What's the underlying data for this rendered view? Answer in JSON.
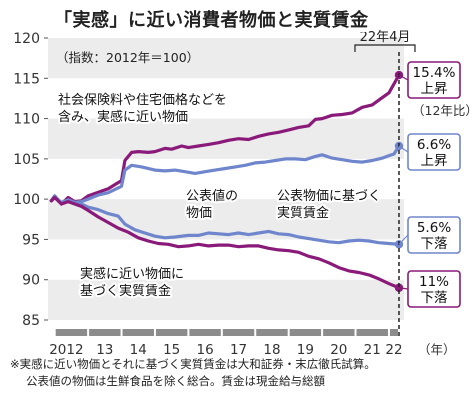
{
  "title": "「実感」に近い消費者物価と実質賃金",
  "index_note": "（指数：2012年＝100）",
  "date_marker": "22年4月",
  "year_unit": "（年）",
  "change_note": "（12年比）",
  "notes": [
    "※実感に近い物価とそれに基づく実質賃金は大和証券・末広徹氏試算。",
    "公表値の物価は生鮮食品を除く総合。賃金は現金給与総額"
  ],
  "colors": {
    "purple": "#8a1a7a",
    "blue": "#6f86cc",
    "axis": "#555555",
    "band": "#ececec",
    "grid": "#cccccc"
  },
  "chart_data": {
    "type": "line",
    "title": "「実感」に近い消費者物価と実質賃金",
    "ylim": [
      85,
      120
    ],
    "yticks": [
      85,
      90,
      95,
      100,
      105,
      110,
      115,
      120
    ],
    "xlim": [
      2011.8,
      2022.45
    ],
    "xticks": [
      {
        "value": 2012,
        "label": "2012"
      },
      {
        "value": 2013,
        "label": "13"
      },
      {
        "value": 2014,
        "label": "14"
      },
      {
        "value": 2015,
        "label": "15"
      },
      {
        "value": 2016,
        "label": "16"
      },
      {
        "value": 2017,
        "label": "17"
      },
      {
        "value": 2018,
        "label": "18"
      },
      {
        "value": 2019,
        "label": "19"
      },
      {
        "value": 2020,
        "label": "20"
      },
      {
        "value": 2021,
        "label": "21"
      },
      {
        "value": 2022,
        "label": "22"
      }
    ],
    "series": [
      {
        "name": "社会保険料や住宅価格などを含み、実感に近い物価",
        "color": "#8a1a7a",
        "end_change": "15.4%",
        "end_direction": "上昇",
        "points": [
          [
            2011.9,
            99.8
          ],
          [
            2012.0,
            100.4
          ],
          [
            2012.2,
            99.4
          ],
          [
            2012.4,
            100.2
          ],
          [
            2012.6,
            99.7
          ],
          [
            2012.8,
            99.8
          ],
          [
            2013.0,
            100.4
          ],
          [
            2013.2,
            100.7
          ],
          [
            2013.4,
            101.0
          ],
          [
            2013.6,
            101.3
          ],
          [
            2013.8,
            101.8
          ],
          [
            2014.0,
            102.3
          ],
          [
            2014.1,
            104.8
          ],
          [
            2014.3,
            105.8
          ],
          [
            2014.5,
            105.9
          ],
          [
            2014.8,
            105.8
          ],
          [
            2015.0,
            105.9
          ],
          [
            2015.3,
            106.3
          ],
          [
            2015.5,
            106.2
          ],
          [
            2015.8,
            106.6
          ],
          [
            2016.0,
            106.4
          ],
          [
            2016.3,
            106.6
          ],
          [
            2016.6,
            106.8
          ],
          [
            2016.9,
            107.0
          ],
          [
            2017.2,
            107.3
          ],
          [
            2017.5,
            107.5
          ],
          [
            2017.8,
            107.4
          ],
          [
            2018.1,
            107.8
          ],
          [
            2018.4,
            108.1
          ],
          [
            2018.7,
            108.3
          ],
          [
            2019.0,
            108.6
          ],
          [
            2019.3,
            108.9
          ],
          [
            2019.6,
            109.1
          ],
          [
            2019.8,
            109.9
          ],
          [
            2020.0,
            110.0
          ],
          [
            2020.3,
            110.4
          ],
          [
            2020.6,
            110.5
          ],
          [
            2020.9,
            110.7
          ],
          [
            2021.2,
            111.4
          ],
          [
            2021.5,
            111.7
          ],
          [
            2021.8,
            112.6
          ],
          [
            2022.0,
            113.2
          ],
          [
            2022.15,
            114.3
          ],
          [
            2022.3,
            115.4
          ]
        ]
      },
      {
        "name": "公表値の物価",
        "color": "#6f86cc",
        "end_change": "6.6%",
        "end_direction": "上昇",
        "points": [
          [
            2011.9,
            99.8
          ],
          [
            2012.0,
            100.2
          ],
          [
            2012.2,
            99.6
          ],
          [
            2012.4,
            99.9
          ],
          [
            2012.6,
            99.6
          ],
          [
            2012.8,
            99.7
          ],
          [
            2013.0,
            100.0
          ],
          [
            2013.3,
            100.5
          ],
          [
            2013.6,
            100.8
          ],
          [
            2014.0,
            101.6
          ],
          [
            2014.1,
            103.6
          ],
          [
            2014.3,
            104.2
          ],
          [
            2014.6,
            104.0
          ],
          [
            2015.0,
            103.6
          ],
          [
            2015.3,
            103.5
          ],
          [
            2015.6,
            103.6
          ],
          [
            2015.9,
            103.4
          ],
          [
            2016.2,
            103.2
          ],
          [
            2016.5,
            103.4
          ],
          [
            2016.8,
            103.6
          ],
          [
            2017.1,
            103.8
          ],
          [
            2017.4,
            104.0
          ],
          [
            2017.7,
            104.2
          ],
          [
            2018.0,
            104.5
          ],
          [
            2018.3,
            104.6
          ],
          [
            2018.6,
            104.8
          ],
          [
            2018.9,
            105.0
          ],
          [
            2019.2,
            105.0
          ],
          [
            2019.5,
            104.9
          ],
          [
            2019.8,
            105.3
          ],
          [
            2020.0,
            105.5
          ],
          [
            2020.3,
            105.1
          ],
          [
            2020.6,
            104.9
          ],
          [
            2020.9,
            104.7
          ],
          [
            2021.2,
            104.6
          ],
          [
            2021.5,
            104.8
          ],
          [
            2021.8,
            105.1
          ],
          [
            2022.0,
            105.4
          ],
          [
            2022.15,
            105.6
          ],
          [
            2022.3,
            106.6
          ]
        ]
      },
      {
        "name": "公表値の物価に基づく実質賃金",
        "color": "#6f86cc",
        "end_change": "5.6%",
        "end_direction": "下落",
        "points": [
          [
            2011.9,
            99.8
          ],
          [
            2012.0,
            100.4
          ],
          [
            2012.2,
            99.5
          ],
          [
            2012.4,
            99.8
          ],
          [
            2012.6,
            99.5
          ],
          [
            2012.8,
            99.4
          ],
          [
            2013.0,
            99.0
          ],
          [
            2013.3,
            98.7
          ],
          [
            2013.6,
            98.2
          ],
          [
            2013.9,
            97.9
          ],
          [
            2014.1,
            96.9
          ],
          [
            2014.4,
            96.2
          ],
          [
            2014.7,
            95.8
          ],
          [
            2015.0,
            95.4
          ],
          [
            2015.3,
            95.2
          ],
          [
            2015.6,
            95.3
          ],
          [
            2016.0,
            95.5
          ],
          [
            2016.3,
            95.5
          ],
          [
            2016.6,
            95.8
          ],
          [
            2016.9,
            95.7
          ],
          [
            2017.2,
            95.6
          ],
          [
            2017.5,
            95.8
          ],
          [
            2017.8,
            95.6
          ],
          [
            2018.1,
            95.8
          ],
          [
            2018.4,
            96.0
          ],
          [
            2018.7,
            95.7
          ],
          [
            2019.0,
            95.6
          ],
          [
            2019.3,
            95.3
          ],
          [
            2019.6,
            95.1
          ],
          [
            2019.9,
            94.9
          ],
          [
            2020.2,
            94.7
          ],
          [
            2020.5,
            94.6
          ],
          [
            2020.8,
            94.8
          ],
          [
            2021.1,
            94.9
          ],
          [
            2021.4,
            94.8
          ],
          [
            2021.7,
            94.6
          ],
          [
            2022.0,
            94.5
          ],
          [
            2022.3,
            94.4
          ]
        ]
      },
      {
        "name": "実感に近い物価に基づく実質賃金",
        "color": "#8a1a7a",
        "end_change": "11%",
        "end_direction": "下落",
        "points": [
          [
            2011.9,
            99.8
          ],
          [
            2012.0,
            100.2
          ],
          [
            2012.2,
            99.4
          ],
          [
            2012.4,
            99.7
          ],
          [
            2012.6,
            99.4
          ],
          [
            2012.8,
            99.1
          ],
          [
            2013.0,
            98.6
          ],
          [
            2013.3,
            97.8
          ],
          [
            2013.6,
            97.1
          ],
          [
            2013.9,
            96.4
          ],
          [
            2014.2,
            95.9
          ],
          [
            2014.5,
            95.2
          ],
          [
            2014.8,
            94.8
          ],
          [
            2015.1,
            94.5
          ],
          [
            2015.4,
            94.4
          ],
          [
            2015.7,
            94.1
          ],
          [
            2016.0,
            94.2
          ],
          [
            2016.3,
            94.4
          ],
          [
            2016.6,
            94.2
          ],
          [
            2016.9,
            94.3
          ],
          [
            2017.2,
            94.3
          ],
          [
            2017.5,
            94.1
          ],
          [
            2017.8,
            94.2
          ],
          [
            2018.1,
            94.2
          ],
          [
            2018.4,
            93.9
          ],
          [
            2018.7,
            93.7
          ],
          [
            2019.0,
            93.6
          ],
          [
            2019.3,
            93.4
          ],
          [
            2019.6,
            92.9
          ],
          [
            2019.9,
            92.6
          ],
          [
            2020.2,
            92.1
          ],
          [
            2020.5,
            91.5
          ],
          [
            2020.8,
            91.1
          ],
          [
            2021.1,
            90.9
          ],
          [
            2021.4,
            90.6
          ],
          [
            2021.7,
            90.1
          ],
          [
            2022.0,
            89.5
          ],
          [
            2022.3,
            89.0
          ]
        ]
      }
    ],
    "annotations": [
      {
        "series": 0,
        "lines": [
          "社会保険料や住宅価格などを",
          "含み、実感に近い物価"
        ]
      },
      {
        "series": 1,
        "lines": [
          "公表値の",
          "物価"
        ]
      },
      {
        "series": 2,
        "lines": [
          "公表物価に基づく",
          "実質賃金"
        ]
      },
      {
        "series": 3,
        "lines": [
          "実感に近い物価に",
          "基づく実質賃金"
        ]
      }
    ]
  }
}
